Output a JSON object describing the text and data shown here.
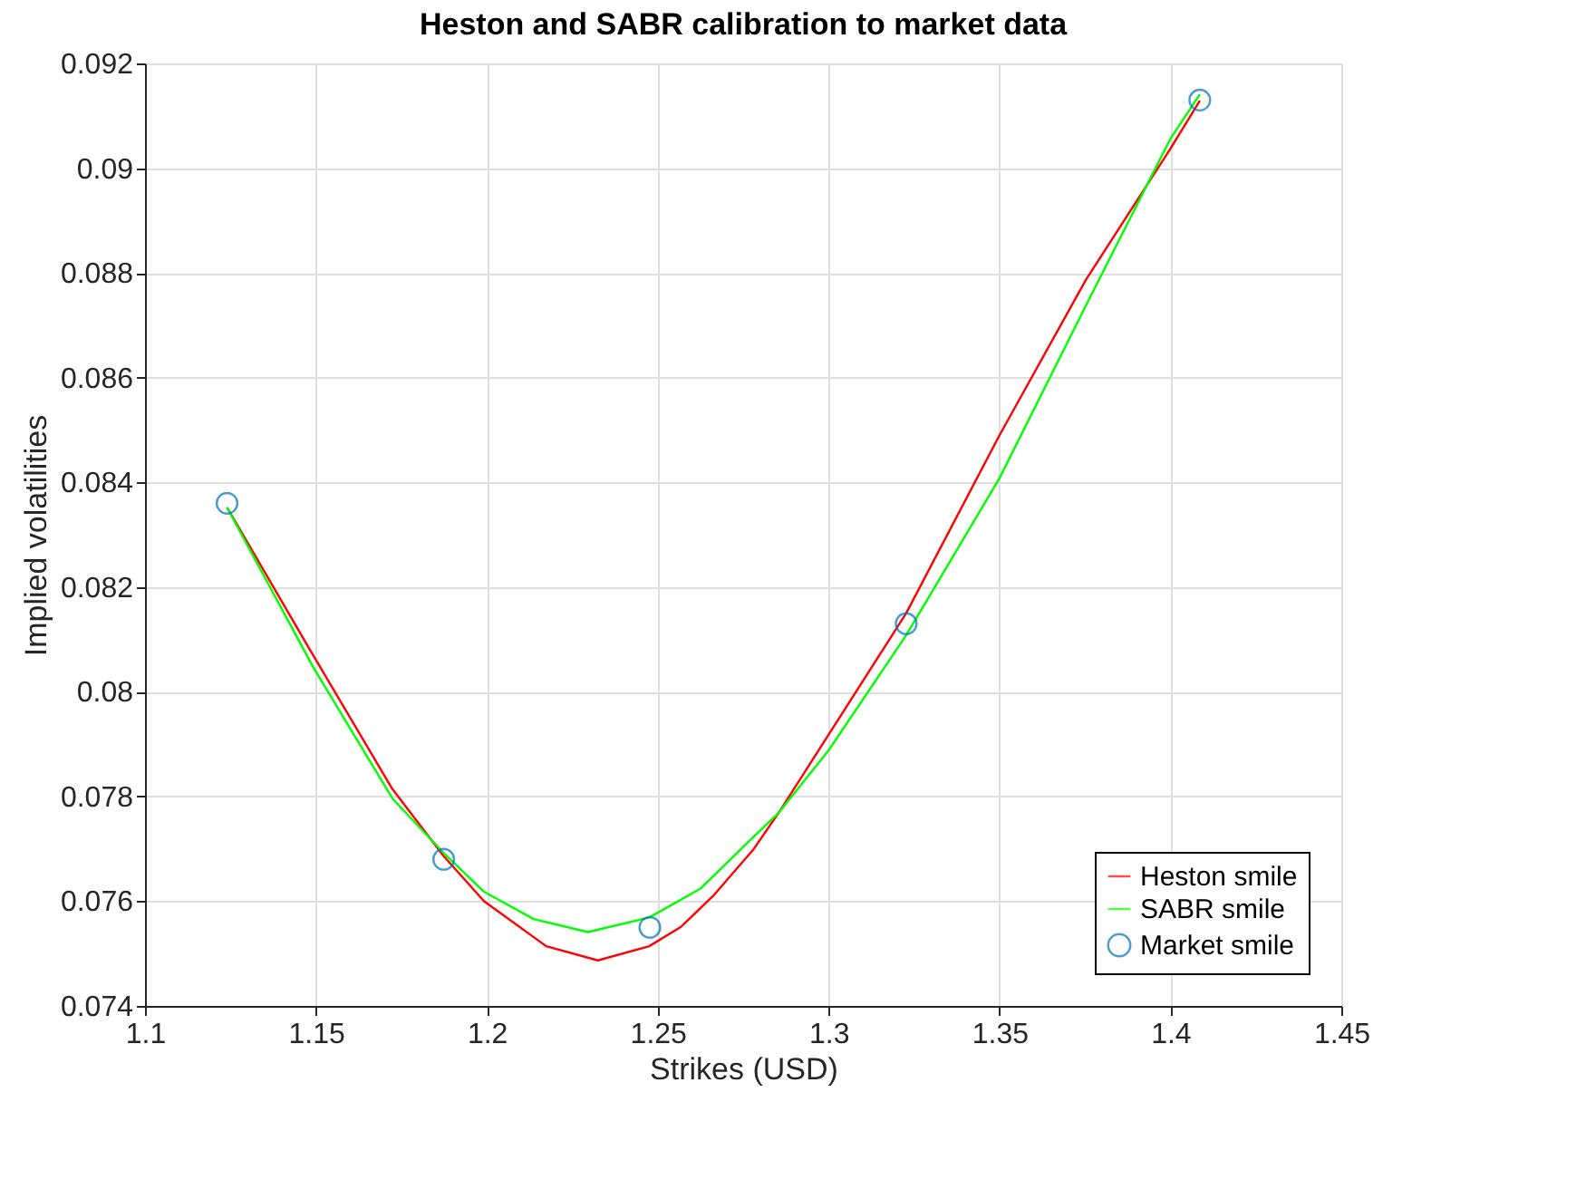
{
  "chart_data": {
    "type": "line",
    "title": "Heston and SABR calibration to market data",
    "xlabel": "Strikes (USD)",
    "ylabel": "Implied volatilities",
    "xlim": [
      1.1,
      1.45
    ],
    "xticks": [
      1.1,
      1.15,
      1.2,
      1.25,
      1.3,
      1.35,
      1.4,
      1.45
    ],
    "ylim": [
      0.074,
      0.092
    ],
    "yticks": [
      0.074,
      0.076,
      0.078,
      0.08,
      0.082,
      0.084,
      0.086,
      0.088,
      0.09,
      0.092
    ],
    "grid": true,
    "legend": "bottom right",
    "series": [
      {
        "name": "Heston smile",
        "type": "line",
        "color": "#ff0000",
        "marker": "none",
        "x": [
          1.124,
          1.148,
          1.1724,
          1.1874,
          1.1992,
          1.2174,
          1.2325,
          1.2475,
          1.2568,
          1.2662,
          1.2779,
          1.2854,
          1.3,
          1.3227,
          1.35,
          1.3753,
          1.4,
          1.4086
        ],
        "values": [
          0.08352,
          0.08083,
          0.07814,
          0.07686,
          0.076,
          0.07514,
          0.07487,
          0.07514,
          0.07551,
          0.0761,
          0.07698,
          0.07769,
          0.07918,
          0.0815,
          0.0849,
          0.08787,
          0.09037,
          0.09129
        ]
      },
      {
        "name": "SABR smile",
        "type": "line",
        "color": "#00ff00",
        "marker": "none",
        "x": [
          1.124,
          1.1492,
          1.1724,
          1.1874,
          1.1992,
          1.2137,
          1.2296,
          1.2475,
          1.2625,
          1.2779,
          1.2854,
          1.3,
          1.3227,
          1.35,
          1.3753,
          1.4,
          1.4086
        ],
        "values": [
          0.08352,
          0.08047,
          0.07796,
          0.07692,
          0.07618,
          0.07566,
          0.07541,
          0.07569,
          0.07624,
          0.07722,
          0.07769,
          0.07888,
          0.08108,
          0.08408,
          0.08738,
          0.09056,
          0.09141
        ]
      },
      {
        "name": "Market smile",
        "type": "scatter",
        "color": "#0072bd",
        "marker": "circle",
        "x": [
          1.124,
          1.1874,
          1.2477,
          1.3227,
          1.4086
        ],
        "values": [
          0.0836,
          0.0768,
          0.0755,
          0.0813,
          0.0913
        ]
      }
    ]
  }
}
